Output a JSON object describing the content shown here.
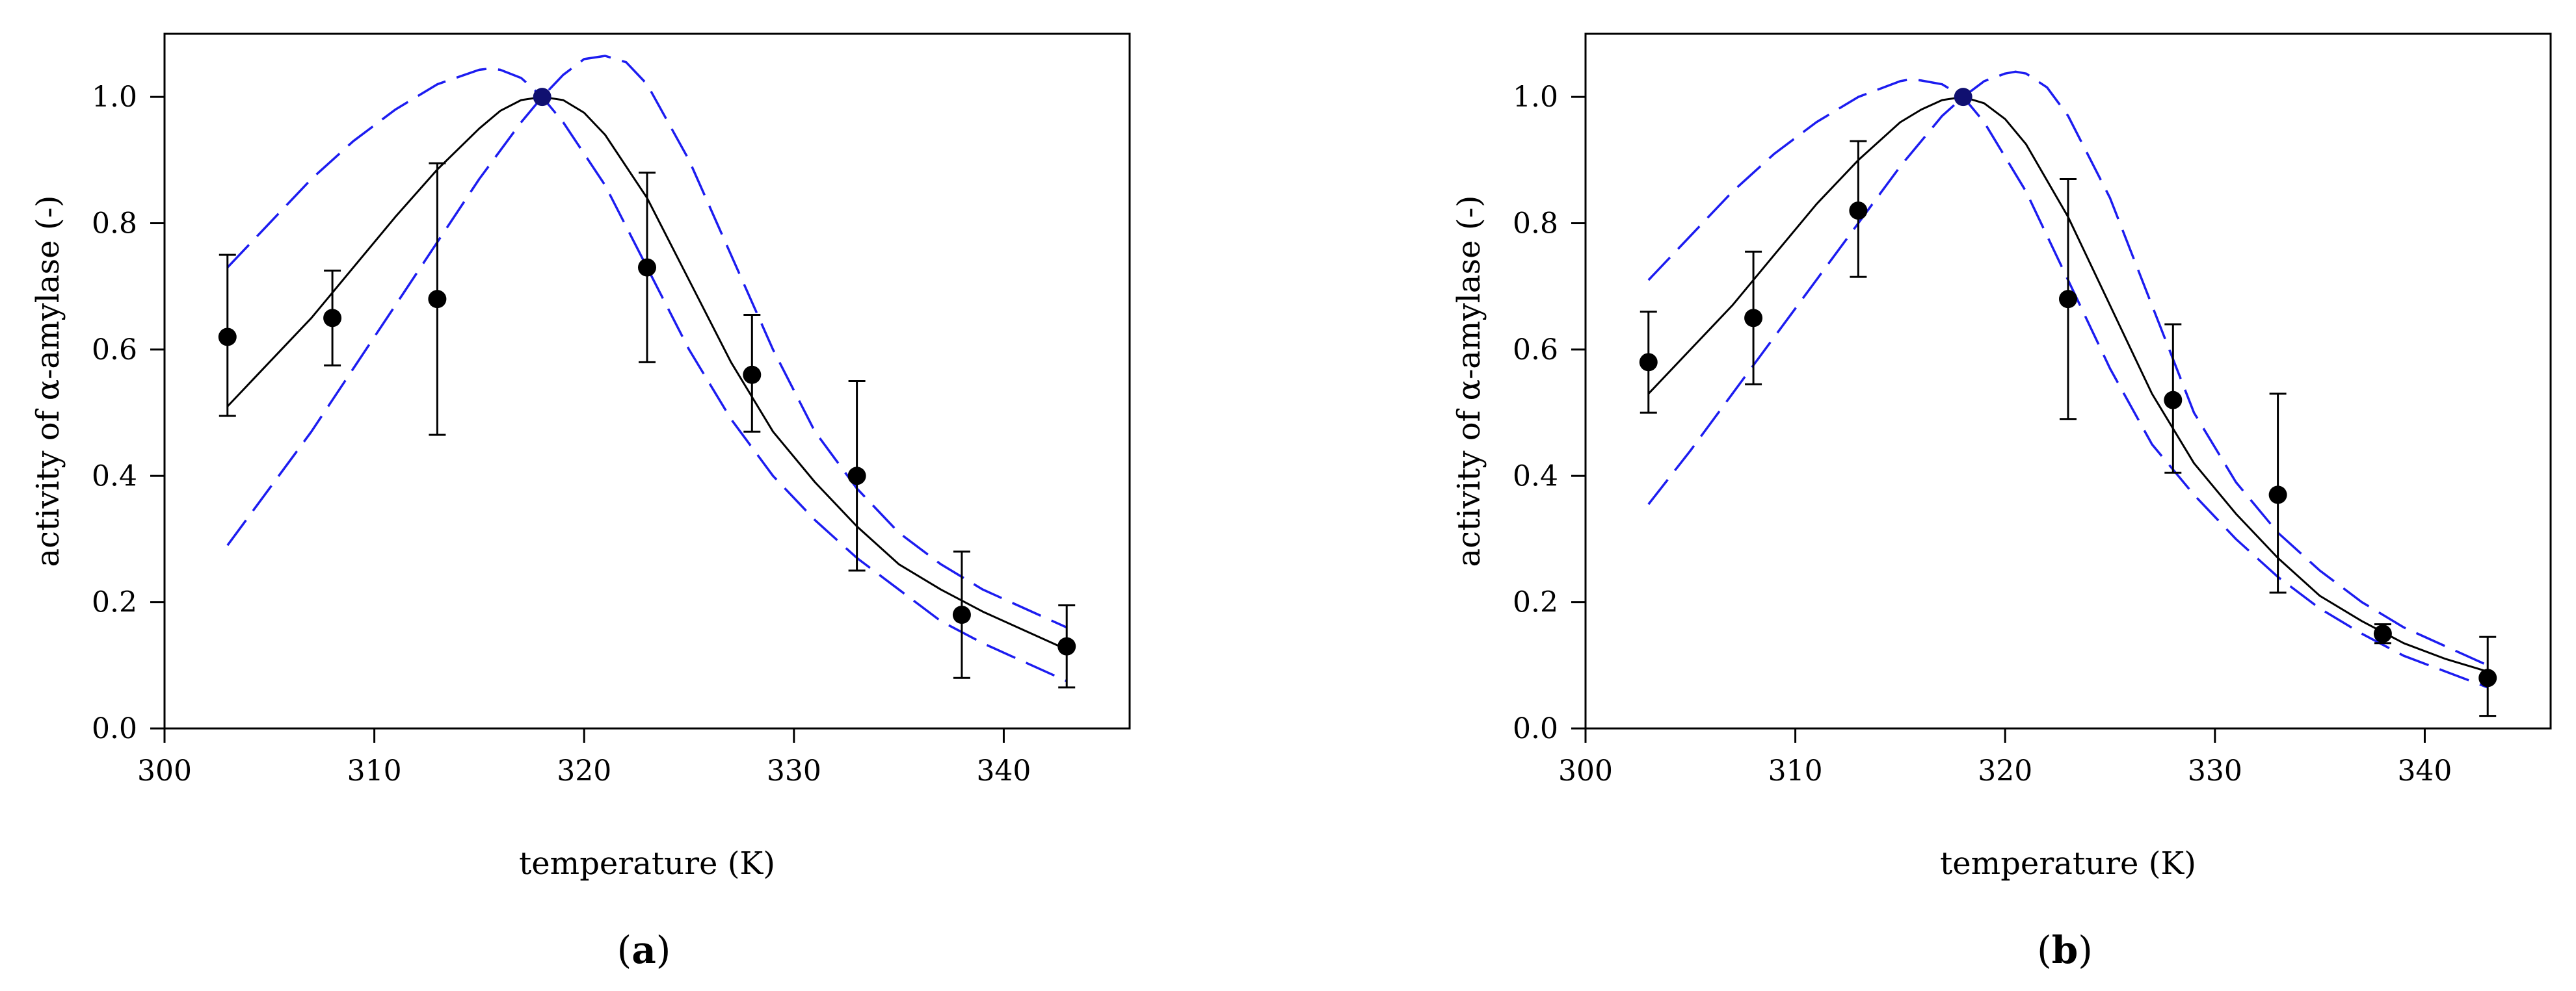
{
  "chart_data": [
    {
      "type": "scatter",
      "panel_label": "a",
      "xlabel": "temperature (K)",
      "ylabel": "activity of  α-amylase (-)",
      "xlim": [
        300,
        346
      ],
      "ylim": [
        0,
        1.1
      ],
      "xticks": [
        300,
        310,
        320,
        330,
        340
      ],
      "yticks": [
        0.0,
        0.2,
        0.4,
        0.6,
        0.8,
        1.0
      ],
      "xtick_labels": [
        "300",
        "310",
        "320",
        "330",
        "340"
      ],
      "ytick_labels": [
        "0.0",
        "0.2",
        "0.4",
        "0.6",
        "0.8",
        "1.0"
      ],
      "points": {
        "name": "measured activity",
        "x": [
          303,
          308,
          313,
          318,
          323,
          328,
          333,
          338,
          343
        ],
        "y": [
          0.62,
          0.65,
          0.68,
          1.0,
          0.73,
          0.56,
          0.4,
          0.18,
          0.13
        ],
        "err_low": [
          0.495,
          0.575,
          0.465,
          1.0,
          0.58,
          0.47,
          0.25,
          0.08,
          0.065
        ],
        "err_high": [
          0.75,
          0.725,
          0.895,
          1.0,
          0.88,
          0.655,
          0.55,
          0.28,
          0.195
        ]
      },
      "series": [
        {
          "name": "model fit",
          "style": "solid",
          "color": "#000000",
          "x": [
            303,
            305,
            307,
            309,
            311,
            313,
            315,
            316,
            317,
            318,
            319,
            320,
            321,
            323,
            325,
            327,
            329,
            331,
            333,
            335,
            337,
            339,
            341,
            343
          ],
          "y": [
            0.51,
            0.58,
            0.65,
            0.73,
            0.81,
            0.885,
            0.95,
            0.978,
            0.995,
            1.0,
            0.995,
            0.975,
            0.94,
            0.84,
            0.71,
            0.58,
            0.47,
            0.39,
            0.32,
            0.26,
            0.22,
            0.185,
            0.155,
            0.125
          ]
        },
        {
          "name": "upper confidence bound",
          "style": "dashed",
          "color": "#1c1cf0",
          "x": [
            303,
            305,
            307,
            309,
            311,
            313,
            315,
            315.5,
            316,
            317,
            318,
            319,
            321,
            323,
            325,
            327,
            329,
            331,
            333,
            335,
            337,
            339,
            341,
            343
          ],
          "y": [
            0.73,
            0.8,
            0.87,
            0.93,
            0.98,
            1.02,
            1.043,
            1.045,
            1.043,
            1.03,
            1.0,
            0.96,
            0.86,
            0.73,
            0.6,
            0.49,
            0.4,
            0.33,
            0.27,
            0.22,
            0.17,
            0.135,
            0.105,
            0.075
          ]
        },
        {
          "name": "lower confidence bound",
          "style": "dashed",
          "color": "#1c1cf0",
          "x": [
            303,
            305,
            307,
            309,
            311,
            313,
            315,
            317,
            318,
            319,
            320,
            321,
            322,
            323,
            325,
            327,
            329,
            331,
            333,
            335,
            337,
            339,
            341,
            343
          ],
          "y": [
            0.29,
            0.38,
            0.47,
            0.57,
            0.67,
            0.77,
            0.87,
            0.96,
            1.0,
            1.035,
            1.06,
            1.065,
            1.055,
            1.02,
            0.9,
            0.75,
            0.6,
            0.47,
            0.38,
            0.31,
            0.26,
            0.22,
            0.19,
            0.16
          ]
        }
      ]
    },
    {
      "type": "scatter",
      "panel_label": "b",
      "xlabel": "temperature (K)",
      "ylabel": "activity of  α-amylase (-)",
      "xlim": [
        300,
        346
      ],
      "ylim": [
        0,
        1.1
      ],
      "xticks": [
        300,
        310,
        320,
        330,
        340
      ],
      "yticks": [
        0.0,
        0.2,
        0.4,
        0.6,
        0.8,
        1.0
      ],
      "xtick_labels": [
        "300",
        "310",
        "320",
        "330",
        "340"
      ],
      "ytick_labels": [
        "0.0",
        "0.2",
        "0.4",
        "0.6",
        "0.8",
        "1.0"
      ],
      "points": {
        "name": "measured activity",
        "x": [
          303,
          308,
          313,
          318,
          323,
          328,
          333,
          338,
          343
        ],
        "y": [
          0.58,
          0.65,
          0.82,
          1.0,
          0.68,
          0.52,
          0.37,
          0.15,
          0.08
        ],
        "err_low": [
          0.5,
          0.545,
          0.715,
          1.0,
          0.49,
          0.405,
          0.215,
          0.135,
          0.02
        ],
        "err_high": [
          0.66,
          0.755,
          0.93,
          1.0,
          0.87,
          0.64,
          0.53,
          0.165,
          0.145
        ]
      },
      "series": [
        {
          "name": "model fit",
          "style": "solid",
          "color": "#000000",
          "x": [
            303,
            305,
            307,
            309,
            311,
            313,
            315,
            316,
            317,
            318,
            319,
            320,
            321,
            323,
            325,
            327,
            329,
            331,
            333,
            335,
            337,
            339,
            341,
            343
          ],
          "y": [
            0.53,
            0.6,
            0.67,
            0.75,
            0.83,
            0.9,
            0.96,
            0.98,
            0.995,
            1.0,
            0.99,
            0.965,
            0.925,
            0.81,
            0.67,
            0.53,
            0.42,
            0.34,
            0.27,
            0.21,
            0.17,
            0.135,
            0.11,
            0.09
          ]
        },
        {
          "name": "upper confidence bound",
          "style": "dashed",
          "color": "#1c1cf0",
          "x": [
            303,
            305,
            307,
            309,
            311,
            313,
            315,
            315.5,
            316,
            317,
            318,
            319,
            321,
            323,
            325,
            327,
            329,
            331,
            333,
            335,
            337,
            339,
            341,
            343
          ],
          "y": [
            0.71,
            0.78,
            0.85,
            0.91,
            0.96,
            1.0,
            1.025,
            1.028,
            1.026,
            1.02,
            1.0,
            0.96,
            0.85,
            0.71,
            0.57,
            0.45,
            0.37,
            0.3,
            0.24,
            0.19,
            0.15,
            0.115,
            0.09,
            0.065
          ]
        },
        {
          "name": "lower confidence bound",
          "style": "dashed",
          "color": "#1c1cf0",
          "x": [
            303,
            305,
            307,
            309,
            311,
            313,
            315,
            317,
            318,
            319,
            320,
            320.5,
            321,
            322,
            323,
            325,
            327,
            329,
            331,
            333,
            335,
            337,
            339,
            341,
            343
          ],
          "y": [
            0.355,
            0.44,
            0.53,
            0.62,
            0.71,
            0.8,
            0.89,
            0.97,
            1.0,
            1.025,
            1.037,
            1.04,
            1.037,
            1.015,
            0.97,
            0.84,
            0.67,
            0.5,
            0.39,
            0.31,
            0.25,
            0.2,
            0.16,
            0.13,
            0.1
          ]
        }
      ]
    }
  ]
}
